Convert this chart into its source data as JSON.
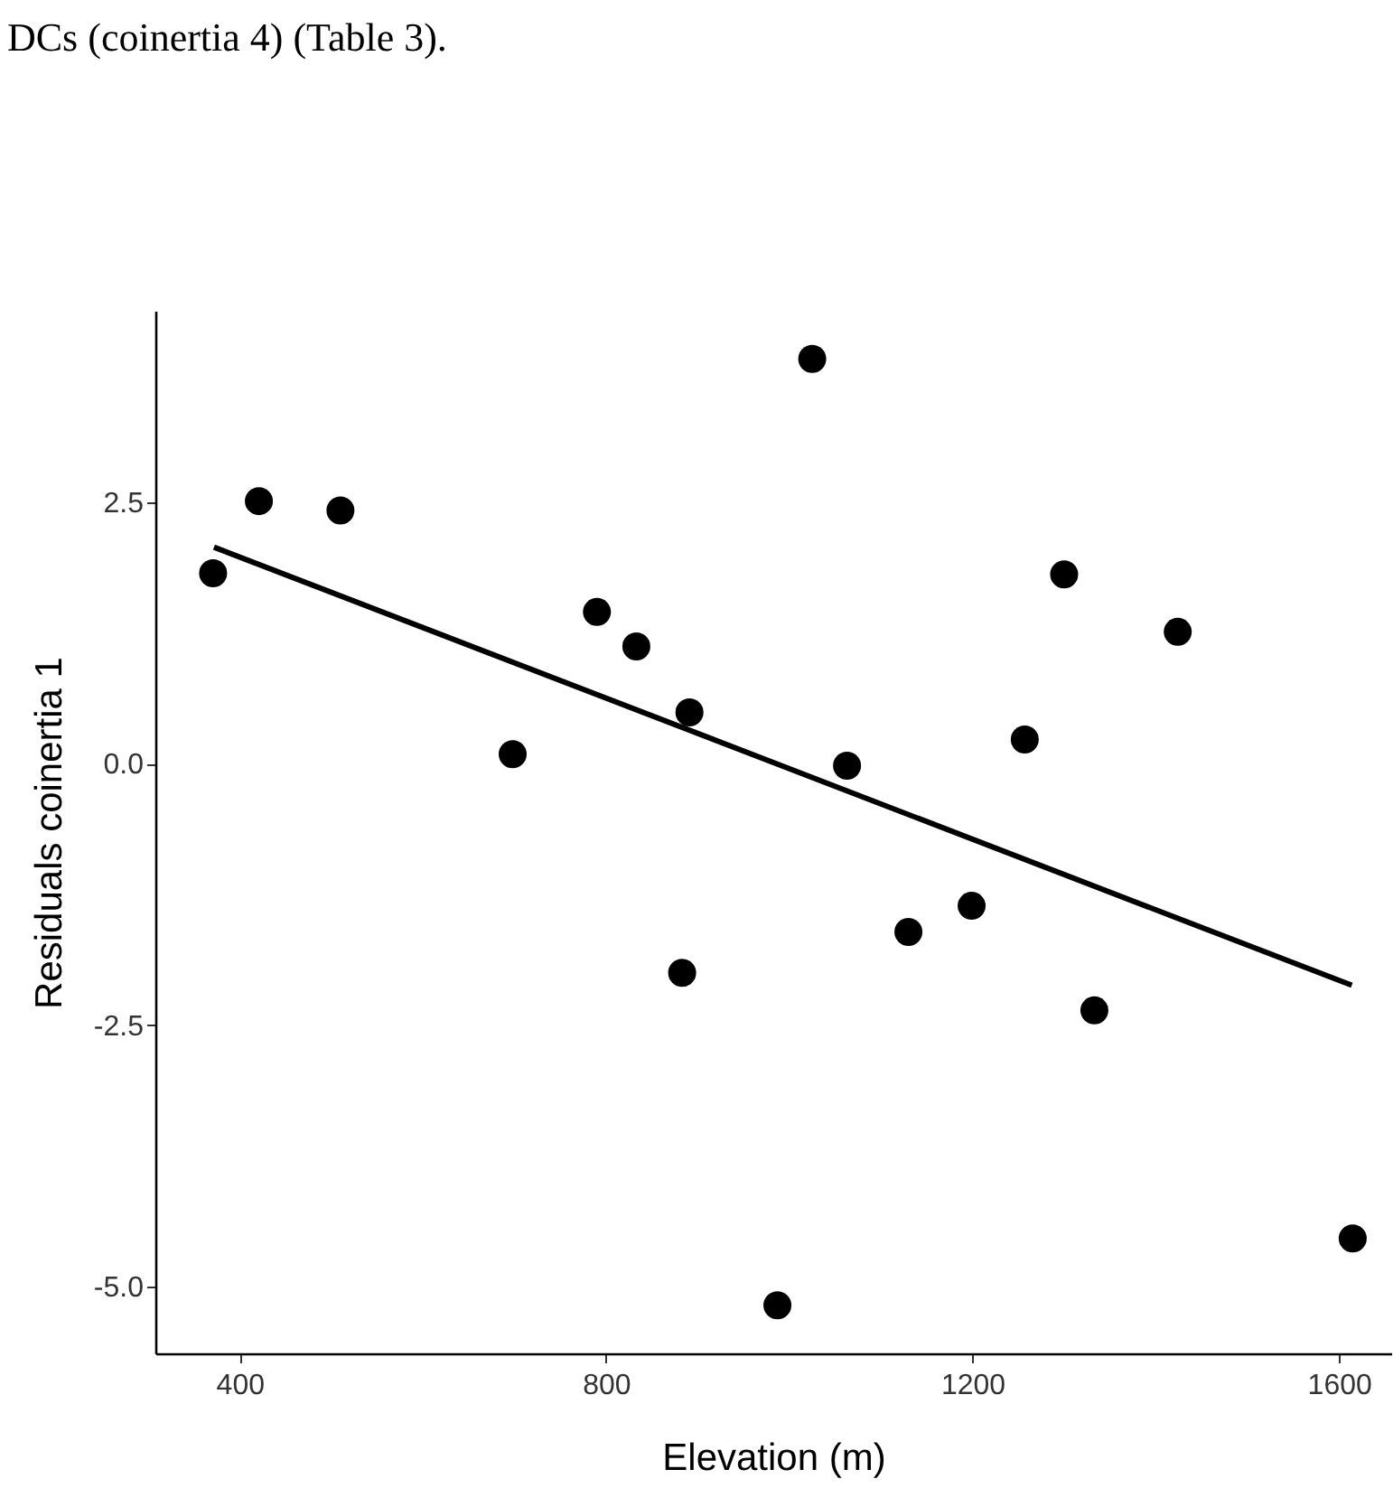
{
  "chart_data": {
    "type": "scatter",
    "xlabel": "Elevation (m)",
    "ylabel": "Residuals coinertia 1",
    "annotations": [
      "DCs (coinertia 4) (Table 3)."
    ],
    "xlim": [
      308,
      1657
    ],
    "ylim": [
      -5.64,
      4.33
    ],
    "xticks": [
      400,
      800,
      1200,
      1600
    ],
    "yticks": [
      {
        "value": -5,
        "label": "-5.0"
      },
      {
        "value": -2.5,
        "label": "-2.5"
      },
      {
        "value": 0,
        "label": "0.0"
      },
      {
        "value": 2.5,
        "label": "2.5"
      }
    ],
    "grid": false,
    "series": [
      {
        "color": "#000000",
        "marker": "circle",
        "x": [
          371,
          421,
          510,
          698,
          790,
          833,
          891,
          883,
          1025,
          1063,
          1300,
          1424,
          1257,
          1199,
          1130,
          1333,
          987,
          1615
        ],
        "values": [
          1.82,
          2.51,
          2.42,
          0.09,
          1.45,
          1.12,
          0.49,
          -2.0,
          3.87,
          -0.02,
          1.81,
          1.26,
          0.23,
          -1.36,
          -1.61,
          -2.36,
          -5.18,
          -4.54
        ]
      },
      {
        "type": "line",
        "color": "#000000",
        "line_style": "solid",
        "x": [
          372,
          1614
        ],
        "values": [
          2.07,
          -2.12
        ]
      }
    ]
  }
}
